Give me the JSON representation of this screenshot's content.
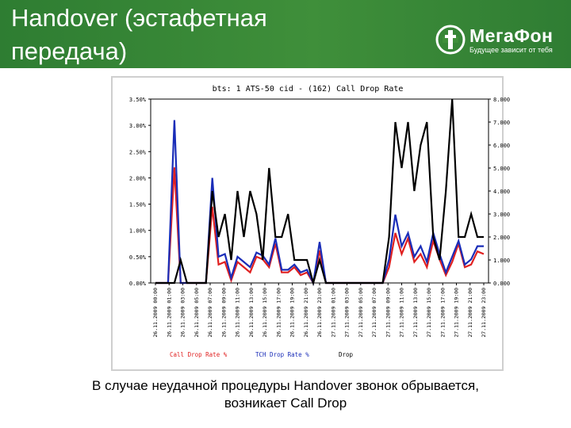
{
  "header": {
    "title": "Handover (эстафетная передача)",
    "logo_text": "МегаФон",
    "logo_tagline": "Будущее зависит от тебя",
    "bg_color": "#3f8f3a"
  },
  "caption": {
    "line1": "В случае неудачной процедуры Handover звонок обрывается,",
    "line2": "возникает Call Drop"
  },
  "chart_data": {
    "type": "line",
    "title": "bts: 1    ATS-50 cid - (162) Call Drop Rate",
    "left_axis": {
      "ylim": [
        0,
        3.5
      ],
      "ticks": [
        "0.00%",
        "0.50%",
        "1.00%",
        "1.50%",
        "2.00%",
        "2.50%",
        "3.00%",
        "3.50%"
      ]
    },
    "right_axis": {
      "ylim": [
        0,
        8
      ],
      "ticks": [
        "0.000",
        "1.000",
        "2.000",
        "3.000",
        "4.000",
        "5.000",
        "6.000",
        "7.000",
        "8.000"
      ]
    },
    "x_labels": [
      "26.11.2009 00:00",
      "26.11.2009 01:00",
      "26.11.2009 03:00",
      "26.11.2009 05:00",
      "26.11.2009 07:00",
      "26.11.2009 09:00",
      "26.11.2009 11:00",
      "26.11.2009 13:00",
      "26.11.2009 15:00",
      "26.11.2009 17:00",
      "26.11.2009 19:00",
      "26.11.2009 21:00",
      "26.11.2009 23:00",
      "27.11.2009 01:00",
      "27.11.2009 03:00",
      "27.11.2009 05:00",
      "27.11.2009 07:00",
      "27.11.2009 09:00",
      "27.11.2009 11:00",
      "27.11.2009 13:00",
      "27.11.2009 15:00",
      "27.11.2009 17:00",
      "27.11.2009 19:00",
      "27.11.2009 21:00",
      "27.11.2009 23:00"
    ],
    "series": [
      {
        "name": "Call Drop Rate %",
        "axis": "left",
        "color": "#e02020",
        "values": [
          0,
          0,
          0,
          2.2,
          0,
          0,
          0,
          0,
          0,
          1.45,
          0.35,
          0.4,
          0.05,
          0.4,
          0.3,
          0.2,
          0.5,
          0.45,
          0.3,
          0.75,
          0.2,
          0.2,
          0.3,
          0.15,
          0.2,
          0,
          0.62,
          0,
          0,
          0,
          0,
          0,
          0,
          0,
          0,
          0,
          0,
          0.3,
          0.95,
          0.55,
          0.85,
          0.4,
          0.55,
          0.3,
          0.8,
          0.45,
          0.15,
          0.4,
          0.75,
          0.3,
          0.35,
          0.6,
          0.55
        ]
      },
      {
        "name": "TCH Drop Rate %",
        "axis": "left",
        "color": "#1a2db8",
        "values": [
          0,
          0,
          0,
          3.1,
          0,
          0,
          0,
          0,
          0,
          2.0,
          0.5,
          0.55,
          0.1,
          0.5,
          0.4,
          0.3,
          0.58,
          0.52,
          0.35,
          0.85,
          0.25,
          0.25,
          0.35,
          0.2,
          0.25,
          0,
          0.78,
          0,
          0,
          0,
          0,
          0,
          0,
          0,
          0,
          0,
          0,
          0.45,
          1.3,
          0.7,
          0.95,
          0.5,
          0.7,
          0.4,
          0.95,
          0.55,
          0.2,
          0.5,
          0.8,
          0.35,
          0.45,
          0.7,
          0.7
        ]
      },
      {
        "name": "Drop",
        "axis": "right",
        "color": "#000000",
        "values": [
          0,
          0,
          0,
          0,
          1.0,
          0,
          0,
          0,
          0,
          4.0,
          2.0,
          3.0,
          1.0,
          4.0,
          2.0,
          4.0,
          3.0,
          1.0,
          5.0,
          2.0,
          2.0,
          3.0,
          1.0,
          1.0,
          1.0,
          0,
          1.0,
          0,
          0,
          0,
          0,
          0,
          0,
          0,
          0,
          0,
          0,
          2.0,
          7.0,
          5.0,
          7.0,
          4.0,
          6.0,
          7.0,
          2.0,
          1.0,
          4.0,
          8.0,
          2.0,
          2.0,
          3.0,
          2.0,
          2.0
        ]
      }
    ],
    "legend": [
      "Call Drop Rate %",
      "TCH Drop Rate %",
      "Drop"
    ],
    "grid": false
  }
}
